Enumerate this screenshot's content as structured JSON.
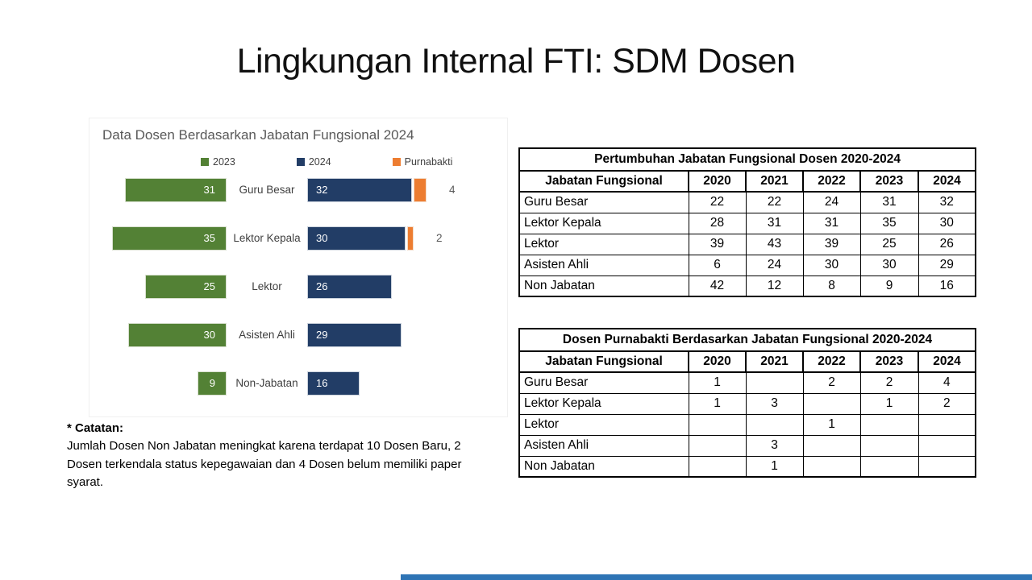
{
  "slide": {
    "title": "Lingkungan Internal FTI: SDM Dosen"
  },
  "colors": {
    "green_2023": "#538135",
    "navy_2024": "#223d66",
    "orange_purnabakti": "#ED7D31",
    "accent_bar": "#2E74B5"
  },
  "chart": {
    "title": "Data Dosen Berdasarkan Jabatan Fungsional 2024",
    "legend": [
      {
        "label": "2023",
        "color": "#538135"
      },
      {
        "label": "2024",
        "color": "#223d66"
      },
      {
        "label": "Purnabakti",
        "color": "#ED7D31"
      }
    ],
    "rows": [
      {
        "label": "Guru Besar",
        "y2023": 31,
        "y2024": 32,
        "purnabakti": 4
      },
      {
        "label": "Lektor Kepala",
        "y2023": 35,
        "y2024": 30,
        "purnabakti": 2
      },
      {
        "label": "Lektor",
        "y2023": 25,
        "y2024": 26,
        "purnabakti": null
      },
      {
        "label": "Asisten Ahli",
        "y2023": 30,
        "y2024": 29,
        "purnabakti": null
      },
      {
        "label": "Non-Jabatan",
        "y2023": 9,
        "y2024": 16,
        "purnabakti": null
      }
    ]
  },
  "chart_data": {
    "type": "bar",
    "title": "Data Dosen Berdasarkan Jabatan Fungsional 2024",
    "orientation": "horizontal-butterfly",
    "categories": [
      "Guru Besar",
      "Lektor Kepala",
      "Lektor",
      "Asisten Ahli",
      "Non-Jabatan"
    ],
    "series": [
      {
        "name": "2023",
        "values": [
          31,
          35,
          25,
          30,
          9
        ],
        "color": "#538135"
      },
      {
        "name": "2024",
        "values": [
          32,
          30,
          26,
          29,
          16
        ],
        "color": "#223d66"
      },
      {
        "name": "Purnabakti",
        "values": [
          4,
          2,
          null,
          null,
          null
        ],
        "color": "#ED7D31"
      }
    ],
    "legend_position": "top",
    "data_labels": true
  },
  "table1": {
    "title": "Pertumbuhan Jabatan Fungsional Dosen 2020-2024",
    "headers": [
      "Jabatan Fungsional",
      "2020",
      "2021",
      "2022",
      "2023",
      "2024"
    ],
    "rows": [
      [
        "Guru Besar",
        "22",
        "22",
        "24",
        "31",
        "32"
      ],
      [
        "Lektor Kepala",
        "28",
        "31",
        "31",
        "35",
        "30"
      ],
      [
        "Lektor",
        "39",
        "43",
        "39",
        "25",
        "26"
      ],
      [
        "Asisten Ahli",
        "6",
        "24",
        "30",
        "30",
        "29"
      ],
      [
        "Non Jabatan",
        "42",
        "12",
        "8",
        "9",
        "16"
      ]
    ]
  },
  "table2": {
    "title": "Dosen Purnabakti Berdasarkan Jabatan Fungsional 2020-2024",
    "headers": [
      "Jabatan Fungsional",
      "2020",
      "2021",
      "2022",
      "2023",
      "2024"
    ],
    "rows": [
      [
        "Guru Besar",
        "1",
        "",
        "2",
        "2",
        "4"
      ],
      [
        "Lektor Kepala",
        "1",
        "3",
        "",
        "1",
        "2"
      ],
      [
        "Lektor",
        "",
        "",
        "1",
        "",
        ""
      ],
      [
        "Asisten Ahli",
        "",
        "3",
        "",
        "",
        ""
      ],
      [
        "Non Jabatan",
        "",
        "1",
        "",
        "",
        ""
      ]
    ]
  },
  "note": {
    "heading": "* Catatan:",
    "body": "Jumlah Dosen Non Jabatan meningkat karena terdapat 10 Dosen Baru, 2 Dosen terkendala status kepegawaian dan 4 Dosen belum memiliki paper syarat."
  }
}
